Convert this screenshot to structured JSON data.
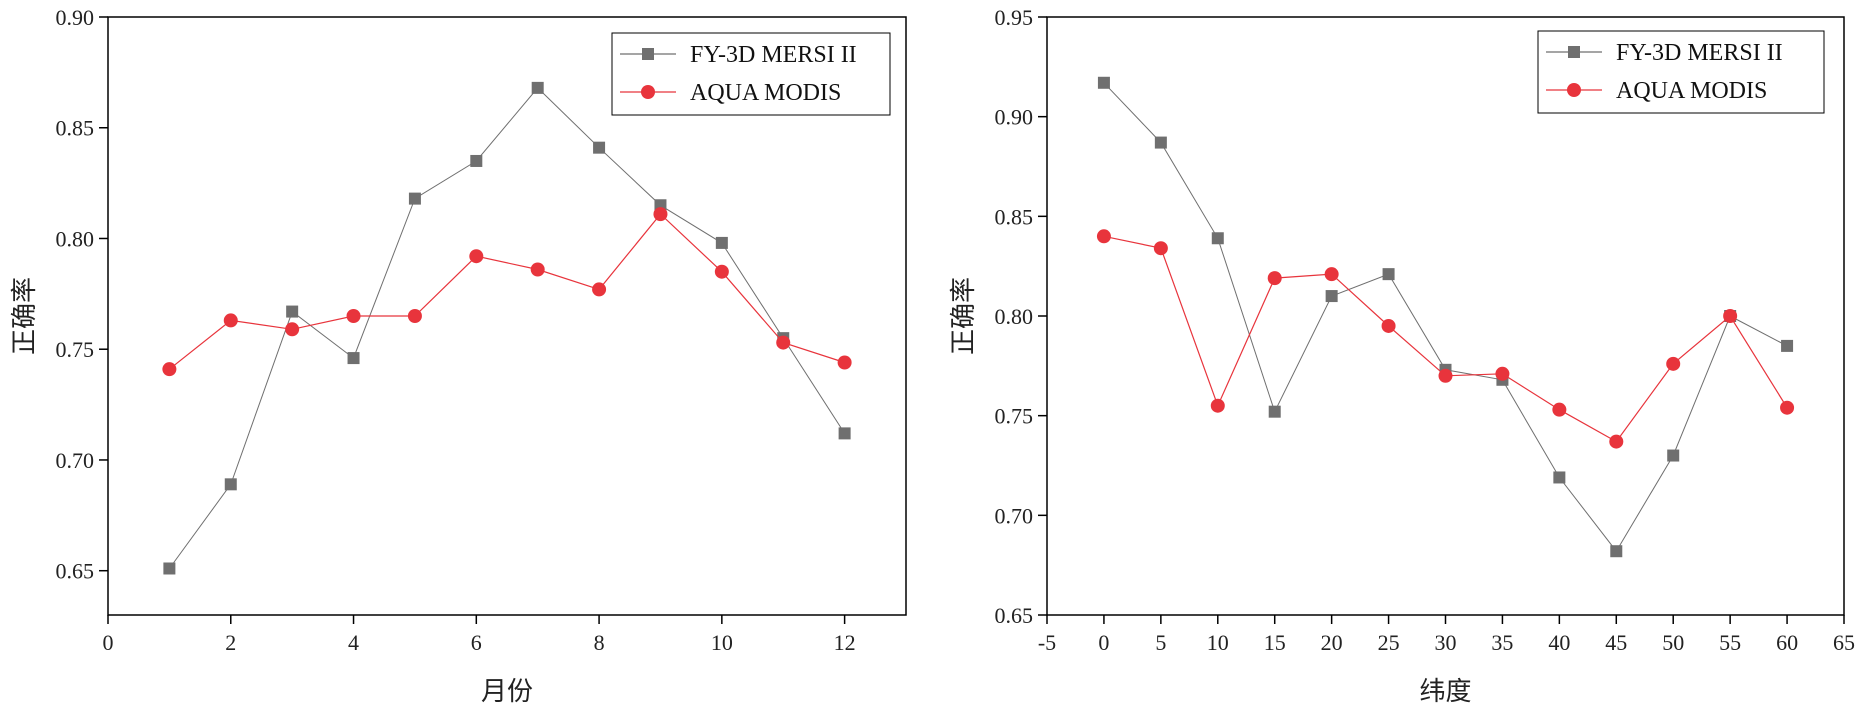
{
  "chart_data": [
    {
      "type": "line",
      "xlabel": "月份",
      "ylabel": "正确率",
      "xlim": [
        0,
        13
      ],
      "ylim": [
        0.63,
        0.9
      ],
      "xticks": [
        0,
        2,
        4,
        6,
        8,
        10,
        12
      ],
      "yticks": [
        0.65,
        0.7,
        0.75,
        0.8,
        0.85,
        0.9
      ],
      "grid": false,
      "legend_position": "top-right",
      "series": [
        {
          "name": "FY-3D MERSI II",
          "color": "#6f6f6f",
          "marker": "square",
          "x": [
            1,
            2,
            3,
            4,
            5,
            6,
            7,
            8,
            9,
            10,
            11,
            12
          ],
          "y": [
            0.651,
            0.689,
            0.767,
            0.746,
            0.818,
            0.835,
            0.868,
            0.841,
            0.815,
            0.798,
            0.755,
            0.712
          ]
        },
        {
          "name": "AQUA MODIS",
          "color": "#e8343c",
          "marker": "circle",
          "x": [
            1,
            2,
            3,
            4,
            5,
            6,
            7,
            8,
            9,
            10,
            11,
            12
          ],
          "y": [
            0.741,
            0.763,
            0.759,
            0.765,
            0.765,
            0.792,
            0.786,
            0.777,
            0.811,
            0.785,
            0.753,
            0.744
          ]
        }
      ]
    },
    {
      "type": "line",
      "xlabel": "纬度",
      "ylabel": "正确率",
      "xlim": [
        -5,
        65
      ],
      "ylim": [
        0.65,
        0.95
      ],
      "xticks": [
        -5,
        0,
        5,
        10,
        15,
        20,
        25,
        30,
        35,
        40,
        45,
        50,
        55,
        60,
        65
      ],
      "yticks": [
        0.65,
        0.7,
        0.75,
        0.8,
        0.85,
        0.9,
        0.95
      ],
      "grid": false,
      "legend_position": "top-right",
      "series": [
        {
          "name": "FY-3D MERSI II",
          "color": "#6f6f6f",
          "marker": "square",
          "x": [
            0,
            5,
            10,
            15,
            20,
            25,
            30,
            35,
            40,
            45,
            50,
            55,
            60
          ],
          "y": [
            0.917,
            0.887,
            0.839,
            0.752,
            0.81,
            0.821,
            0.773,
            0.768,
            0.719,
            0.682,
            0.73,
            0.8,
            0.785
          ]
        },
        {
          "name": "AQUA MODIS",
          "color": "#e8343c",
          "marker": "circle",
          "x": [
            0,
            5,
            10,
            15,
            20,
            25,
            30,
            35,
            40,
            45,
            50,
            55,
            60
          ],
          "y": [
            0.84,
            0.834,
            0.755,
            0.819,
            0.821,
            0.795,
            0.77,
            0.771,
            0.753,
            0.737,
            0.776,
            0.8,
            0.754
          ]
        }
      ]
    }
  ]
}
